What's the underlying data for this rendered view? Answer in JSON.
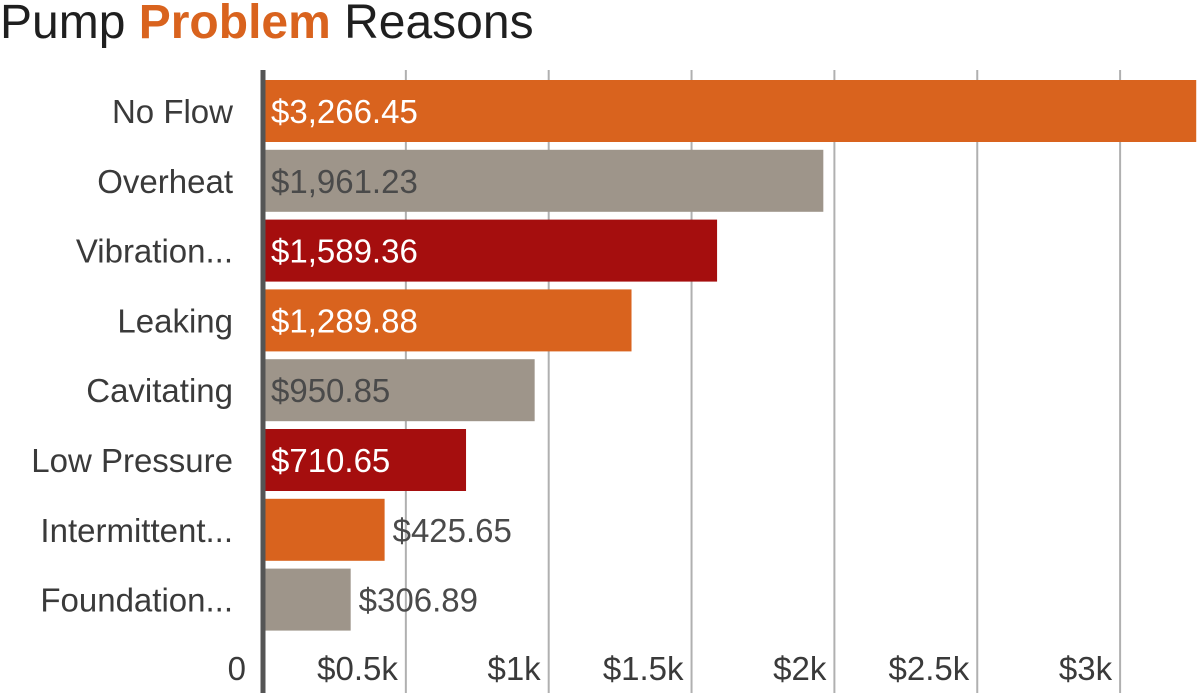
{
  "title": {
    "prefix": "Pump",
    "highlight": "Problem",
    "suffix": "Reasons"
  },
  "colors": {
    "accent": "#d9631e",
    "gray": "#9e958a",
    "red": "#a50e0e",
    "grid": "#b0b0b0",
    "axis": "#555555"
  },
  "chart_data": {
    "type": "bar",
    "orientation": "horizontal",
    "categories": [
      "No Flow",
      "Overheat",
      "Vibration...",
      "Leaking",
      "Cavitating",
      "Low Pressure",
      "Intermittent...",
      "Foundation..."
    ],
    "values": [
      3266.45,
      1961.23,
      1589.36,
      1289.88,
      950.85,
      710.65,
      425.65,
      306.89
    ],
    "value_labels": [
      "$3,266.45",
      "$1,961.23",
      "$1,589.36",
      "$1,289.88",
      "$950.85",
      "$710.65",
      "$425.65",
      "$306.89"
    ],
    "bar_colors": [
      "#d9631e",
      "#9e958a",
      "#a50e0e",
      "#d9631e",
      "#9e958a",
      "#a50e0e",
      "#d9631e",
      "#9e958a"
    ],
    "label_colors": [
      "#ffffff",
      "#4a4a4a",
      "#ffffff",
      "#ffffff",
      "#4a4a4a",
      "#ffffff",
      "#4a4a4a",
      "#4a4a4a"
    ],
    "x_ticks": [
      0,
      500,
      1000,
      1500,
      2000,
      2500,
      3000
    ],
    "x_tick_labels": [
      "0",
      "$0.5k",
      "$1k",
      "$1.5k",
      "$2k",
      "$2.5k",
      "$3k"
    ],
    "xlim": [
      0,
      3270
    ],
    "grid": true
  }
}
